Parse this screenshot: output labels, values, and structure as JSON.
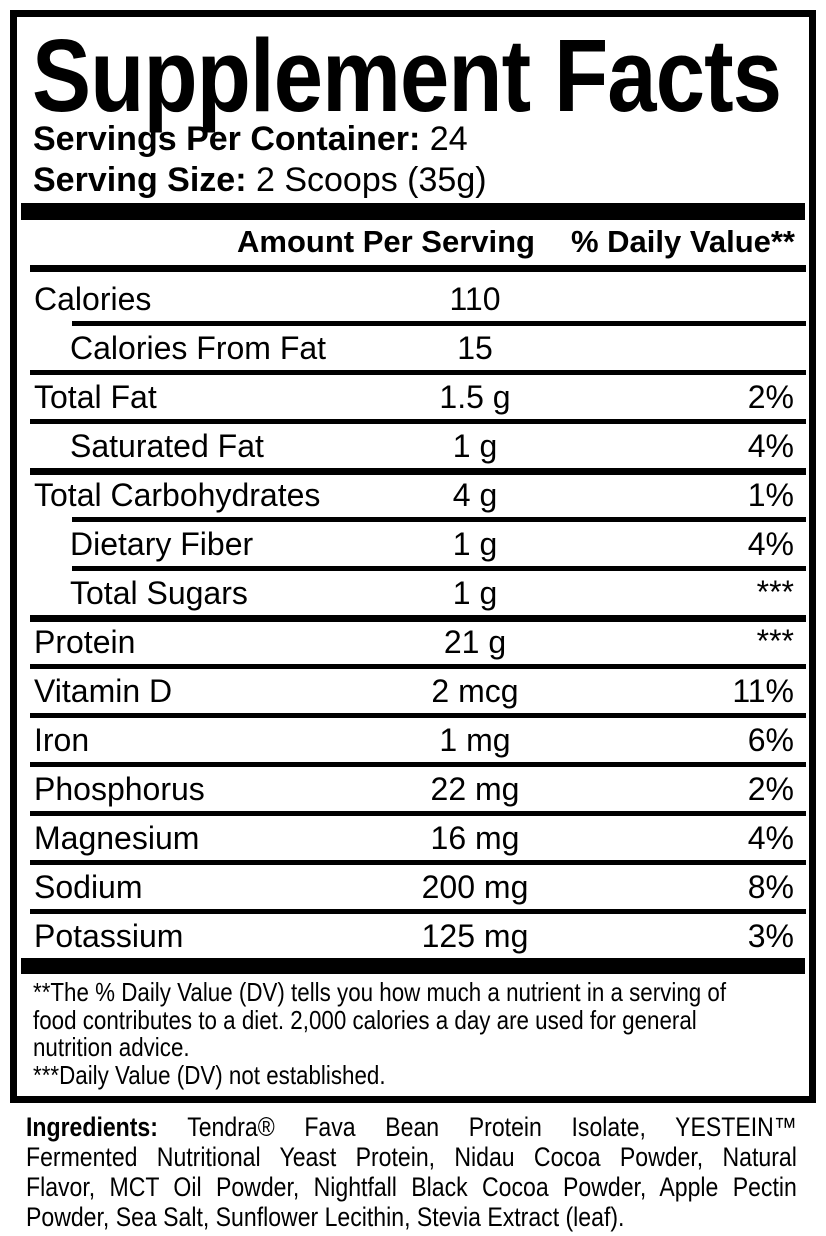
{
  "colors": {
    "ink": "#000000",
    "paper": "#ffffff"
  },
  "panel": {
    "title": "Supplement Facts",
    "servings_per_container": {
      "label": "Servings Per Container:",
      "value": "24"
    },
    "serving_size": {
      "label": "Serving Size:",
      "value": "2 Scoops (35g)"
    },
    "header": {
      "amount": "Amount Per Serving",
      "daily_value": "% Daily Value**"
    },
    "rows": [
      {
        "name": "Calories",
        "amount": "110",
        "dv": "",
        "indent": false,
        "sep": "none",
        "dv_raised": false
      },
      {
        "name": "Calories From Fat",
        "amount": "15",
        "dv": "",
        "indent": true,
        "sep": "indented",
        "dv_raised": false
      },
      {
        "name": "Total Fat",
        "amount": "1.5 g",
        "dv": "2%",
        "indent": false,
        "sep": "full",
        "dv_raised": false
      },
      {
        "name": "Saturated Fat",
        "amount": "1 g",
        "dv": "4%",
        "indent": true,
        "sep": "full",
        "dv_raised": false
      },
      {
        "name": "Total Carbohydrates",
        "amount": "4 g",
        "dv": "1%",
        "indent": false,
        "sep": "thick",
        "dv_raised": false
      },
      {
        "name": "Dietary Fiber",
        "amount": "1 g",
        "dv": "4%",
        "indent": true,
        "sep": "indented",
        "dv_raised": false
      },
      {
        "name": "Total Sugars",
        "amount": "1 g",
        "dv": "***",
        "indent": true,
        "sep": "indented",
        "dv_raised": true
      },
      {
        "name": "Protein",
        "amount": "21 g",
        "dv": "***",
        "indent": false,
        "sep": "thick",
        "dv_raised": true
      },
      {
        "name": "Vitamin D",
        "amount": "2 mcg",
        "dv": "11%",
        "indent": false,
        "sep": "full",
        "dv_raised": false
      },
      {
        "name": "Iron",
        "amount": "1 mg",
        "dv": "6%",
        "indent": false,
        "sep": "full",
        "dv_raised": false
      },
      {
        "name": "Phosphorus",
        "amount": "22 mg",
        "dv": "2%",
        "indent": false,
        "sep": "full",
        "dv_raised": false
      },
      {
        "name": "Magnesium",
        "amount": "16 mg",
        "dv": "4%",
        "indent": false,
        "sep": "full",
        "dv_raised": false
      },
      {
        "name": "Sodium",
        "amount": "200 mg",
        "dv": "8%",
        "indent": false,
        "sep": "full",
        "dv_raised": false
      },
      {
        "name": "Potassium",
        "amount": "125 mg",
        "dv": "3%",
        "indent": false,
        "sep": "full",
        "dv_raised": false
      }
    ],
    "footnote_lines": [
      "**The % Daily Value (DV) tells you how much a nutrient in a serving of",
      "food contributes to a diet. 2,000 calories a day are used for general",
      "nutrition advice.",
      "***Daily Value (DV) not established."
    ]
  },
  "ingredients": {
    "label": "Ingredients:",
    "lines": [
      {
        "text": "Tendra® Fava Bean Protein Isolate, YESTEIN™",
        "justify": true,
        "lead_label": true
      },
      {
        "text": "Fermented Nutritional Yeast Protein, Nidau Cocoa Powder, Natural",
        "justify": true,
        "lead_label": false
      },
      {
        "text": "Flavor, MCT Oil Powder, Nightfall Black Cocoa Powder, Apple Pectin",
        "justify": true,
        "lead_label": false
      },
      {
        "text": "Powder, Sea Salt, Sunflower Lecithin, Stevia Extract (leaf).",
        "justify": false,
        "lead_label": false
      }
    ]
  }
}
